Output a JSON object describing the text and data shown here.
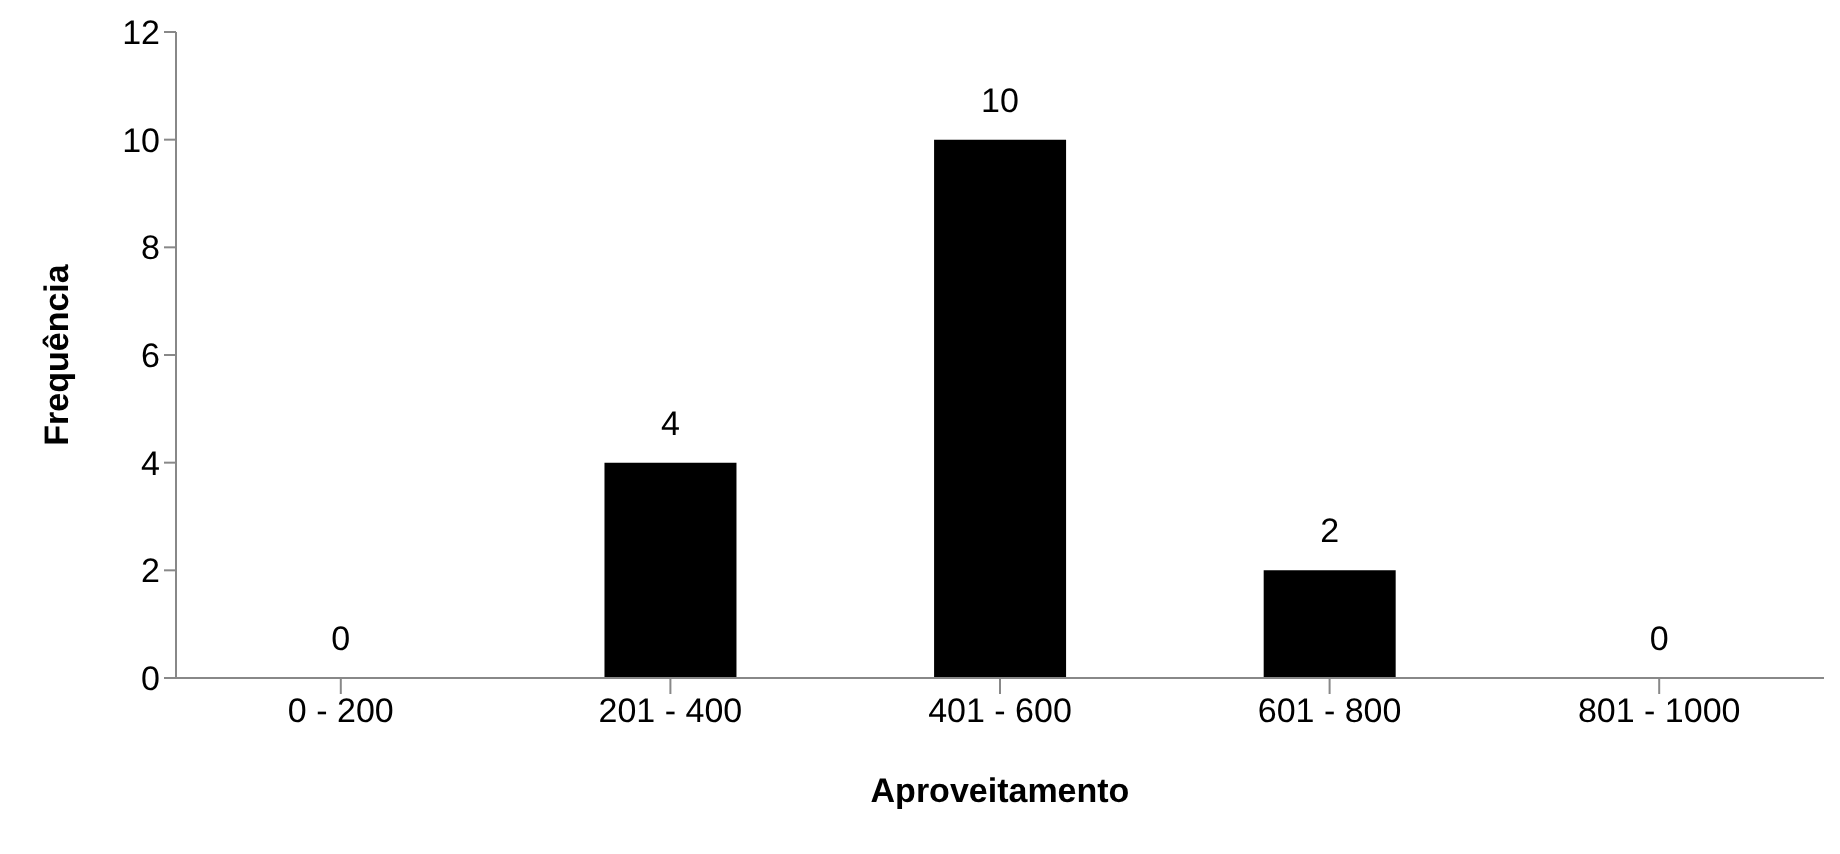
{
  "chart_data": {
    "type": "bar",
    "xlabel": "Aproveitamento",
    "ylabel": "Frequência",
    "categories": [
      "0 - 200",
      "201 - 400",
      "401 - 600",
      "601 - 800",
      "801 - 1000"
    ],
    "values": [
      0,
      4,
      10,
      2,
      0
    ],
    "color": "#000000",
    "ylim": [
      0,
      12
    ],
    "yticks": [
      0,
      2,
      4,
      6,
      8,
      10,
      12
    ],
    "grid": false,
    "data_labels": true,
    "legend": false
  }
}
